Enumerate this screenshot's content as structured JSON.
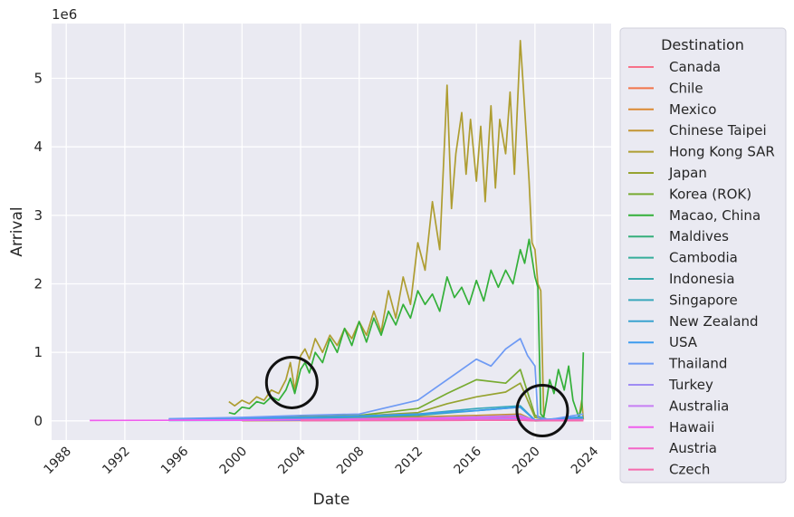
{
  "chart_data": {
    "type": "line",
    "title": "",
    "xlabel": "Date",
    "ylabel": "Arrival",
    "y_scale_label": "1e6",
    "xlim": [
      1987.0,
      2025.2
    ],
    "ylim": [
      -0.28,
      5.8
    ],
    "x_ticks": [
      "1988",
      "1992",
      "1996",
      "2000",
      "2004",
      "2008",
      "2012",
      "2016",
      "2020",
      "2024"
    ],
    "x_tick_values": [
      1988,
      1992,
      1996,
      2000,
      2004,
      2008,
      2012,
      2016,
      2020,
      2024
    ],
    "y_ticks": [
      "0",
      "1",
      "2",
      "3",
      "4",
      "5"
    ],
    "y_tick_values": [
      0,
      1,
      2,
      3,
      4,
      5
    ],
    "grid": true,
    "background": "#eaeaf2",
    "legend": {
      "title": "Destination",
      "placement": "outside-right"
    },
    "series": [
      {
        "name": "Canada",
        "color": "#f77189",
        "x": [
          1995,
          2000,
          2004,
          2008,
          2012,
          2016,
          2019,
          2020,
          2023.3
        ],
        "values": [
          0.01,
          0.02,
          0.02,
          0.03,
          0.04,
          0.05,
          0.06,
          0.01,
          0.03
        ]
      },
      {
        "name": "Chile",
        "color": "#f2754a",
        "x": [
          2000,
          2008,
          2016,
          2019,
          2020,
          2023.3
        ],
        "values": [
          0.005,
          0.008,
          0.01,
          0.012,
          0.002,
          0.005
        ]
      },
      {
        "name": "Mexico",
        "color": "#dc8932",
        "x": [
          2000,
          2008,
          2016,
          2019,
          2020,
          2023.3
        ],
        "values": [
          0.004,
          0.01,
          0.015,
          0.018,
          0.002,
          0.008
        ]
      },
      {
        "name": "Chinese Taipei",
        "color": "#c39532",
        "x": [
          1995,
          2000,
          2004,
          2008,
          2012,
          2016,
          2019,
          2020,
          2023.3
        ],
        "values": [
          0.02,
          0.03,
          0.04,
          0.05,
          0.06,
          0.08,
          0.1,
          0.0,
          0.02
        ]
      },
      {
        "name": "Hong Kong SAR",
        "color": "#ae9d31",
        "x": [
          1999.1,
          1999.5,
          2000,
          2000.5,
          2001,
          2001.5,
          2002,
          2002.5,
          2003,
          2003.3,
          2003.6,
          2004,
          2004.3,
          2004.6,
          2005,
          2005.5,
          2006,
          2006.5,
          2007,
          2007.5,
          2008,
          2008.5,
          2009,
          2009.5,
          2010,
          2010.5,
          2011,
          2011.5,
          2012,
          2012.5,
          2013,
          2013.5,
          2014,
          2014.3,
          2014.6,
          2015,
          2015.3,
          2015.6,
          2016,
          2016.3,
          2016.6,
          2017,
          2017.3,
          2017.6,
          2018,
          2018.3,
          2018.6,
          2019,
          2019.2,
          2019.4,
          2019.6,
          2019.8,
          2020,
          2020.2,
          2020.4,
          2020.6,
          2020.8,
          2021,
          2021.5,
          2022,
          2022.5,
          2023,
          2023.2,
          2023.3
        ],
        "values": [
          0.28,
          0.22,
          0.3,
          0.25,
          0.35,
          0.3,
          0.45,
          0.4,
          0.6,
          0.85,
          0.45,
          0.95,
          1.05,
          0.9,
          1.2,
          1.0,
          1.25,
          1.1,
          1.35,
          1.2,
          1.45,
          1.25,
          1.6,
          1.3,
          1.9,
          1.5,
          2.1,
          1.7,
          2.6,
          2.2,
          3.2,
          2.5,
          4.9,
          3.1,
          3.9,
          4.5,
          3.6,
          4.4,
          3.5,
          4.3,
          3.2,
          4.6,
          3.4,
          4.4,
          3.9,
          4.8,
          3.6,
          5.55,
          4.9,
          4.2,
          3.5,
          2.6,
          2.5,
          2.0,
          1.9,
          0.05,
          0.02,
          0.01,
          0.01,
          0.01,
          0.02,
          0.05,
          0.3,
          0.02
        ]
      },
      {
        "name": "Japan",
        "color": "#96a331",
        "x": [
          1995,
          2000,
          2004,
          2008,
          2012,
          2014,
          2016,
          2018,
          2019,
          2020,
          2021,
          2023.3
        ],
        "values": [
          0.01,
          0.03,
          0.05,
          0.07,
          0.12,
          0.25,
          0.35,
          0.42,
          0.55,
          0.05,
          0.01,
          0.04
        ]
      },
      {
        "name": "Korea (ROK)",
        "color": "#77ab31",
        "x": [
          1995,
          2000,
          2004,
          2008,
          2012,
          2014,
          2016,
          2018,
          2019,
          2020,
          2021,
          2023.3
        ],
        "values": [
          0.02,
          0.04,
          0.06,
          0.08,
          0.18,
          0.4,
          0.6,
          0.55,
          0.75,
          0.08,
          0.01,
          0.06
        ]
      },
      {
        "name": "Macao, China",
        "color": "#33b039",
        "x": [
          1999.1,
          1999.5,
          2000,
          2000.5,
          2001,
          2001.5,
          2002,
          2002.5,
          2003,
          2003.3,
          2003.6,
          2004,
          2004.3,
          2004.6,
          2005,
          2005.5,
          2006,
          2006.5,
          2007,
          2007.5,
          2008,
          2008.5,
          2009,
          2009.5,
          2010,
          2010.5,
          2011,
          2011.5,
          2012,
          2012.5,
          2013,
          2013.5,
          2014,
          2014.5,
          2015,
          2015.5,
          2016,
          2016.5,
          2017,
          2017.5,
          2018,
          2018.5,
          2019,
          2019.3,
          2019.6,
          2020,
          2020.2,
          2020.4,
          2020.6,
          2020.8,
          2021,
          2021.3,
          2021.6,
          2022,
          2022.3,
          2022.6,
          2023,
          2023.2,
          2023.3
        ],
        "values": [
          0.12,
          0.1,
          0.2,
          0.18,
          0.28,
          0.25,
          0.35,
          0.3,
          0.45,
          0.62,
          0.4,
          0.75,
          0.85,
          0.7,
          1.0,
          0.85,
          1.2,
          1.0,
          1.35,
          1.1,
          1.45,
          1.15,
          1.5,
          1.25,
          1.6,
          1.4,
          1.7,
          1.5,
          1.9,
          1.7,
          1.85,
          1.6,
          2.1,
          1.8,
          1.95,
          1.7,
          2.05,
          1.75,
          2.2,
          1.95,
          2.2,
          2.0,
          2.5,
          2.3,
          2.65,
          2.1,
          1.95,
          0.1,
          0.05,
          0.3,
          0.6,
          0.4,
          0.75,
          0.45,
          0.8,
          0.3,
          0.05,
          0.2,
          1.0
        ]
      },
      {
        "name": "Maldives",
        "color": "#35ae7b",
        "x": [
          2004,
          2012,
          2016,
          2019,
          2020,
          2023.3
        ],
        "values": [
          0.005,
          0.01,
          0.02,
          0.025,
          0.002,
          0.01
        ]
      },
      {
        "name": "Cambodia",
        "color": "#36ad9a",
        "x": [
          2004,
          2012,
          2016,
          2019,
          2020,
          2023.3
        ],
        "values": [
          0.01,
          0.03,
          0.05,
          0.08,
          0.01,
          0.02
        ]
      },
      {
        "name": "Indonesia",
        "color": "#38aaac",
        "x": [
          1995,
          2004,
          2012,
          2016,
          2019,
          2020,
          2023.3
        ],
        "values": [
          0.01,
          0.03,
          0.08,
          0.15,
          0.2,
          0.01,
          0.03
        ]
      },
      {
        "name": "Singapore",
        "color": "#39a7bc",
        "x": [
          1995,
          2004,
          2012,
          2016,
          2019,
          2020,
          2023.3
        ],
        "values": [
          0.02,
          0.04,
          0.1,
          0.18,
          0.22,
          0.01,
          0.05
        ]
      },
      {
        "name": "New Zealand",
        "color": "#3ba3d0",
        "x": [
          1995,
          2004,
          2012,
          2016,
          2019,
          2020,
          2023.3
        ],
        "values": [
          0.005,
          0.01,
          0.02,
          0.03,
          0.04,
          0.0,
          0.01
        ]
      },
      {
        "name": "USA",
        "color": "#3d9bee",
        "x": [
          1995,
          2000,
          2004,
          2008,
          2012,
          2016,
          2019,
          2020,
          2023.3
        ],
        "values": [
          0.02,
          0.04,
          0.05,
          0.07,
          0.1,
          0.15,
          0.2,
          0.01,
          0.06
        ]
      },
      {
        "name": "Thailand",
        "color": "#6e9af4",
        "x": [
          1995,
          2000,
          2004,
          2008,
          2012,
          2014,
          2015,
          2016,
          2017,
          2018,
          2019,
          2019.5,
          2020,
          2020.2,
          2021,
          2023.3
        ],
        "values": [
          0.03,
          0.05,
          0.08,
          0.1,
          0.3,
          0.6,
          0.75,
          0.9,
          0.8,
          1.05,
          1.2,
          0.95,
          0.8,
          0.05,
          0.02,
          0.1
        ]
      },
      {
        "name": "Turkey",
        "color": "#9f8cf4",
        "x": [
          2004,
          2012,
          2016,
          2019,
          2020,
          2023.3
        ],
        "values": [
          0.005,
          0.01,
          0.02,
          0.03,
          0.002,
          0.01
        ]
      },
      {
        "name": "Australia",
        "color": "#c67ef4",
        "x": [
          1995,
          2004,
          2012,
          2016,
          2019,
          2020,
          2023.3
        ],
        "values": [
          0.01,
          0.02,
          0.04,
          0.06,
          0.08,
          0.005,
          0.02
        ]
      },
      {
        "name": "Hawaii",
        "color": "#ef5eee",
        "x": [
          1989.6,
          1995,
          2000,
          2004,
          2008,
          2012,
          2016,
          2019,
          2020,
          2023.3
        ],
        "values": [
          0.005,
          0.008,
          0.01,
          0.015,
          0.02,
          0.03,
          0.04,
          0.05,
          0.005,
          0.01
        ]
      },
      {
        "name": "Austria",
        "color": "#f365c7",
        "x": [
          2004,
          2012,
          2016,
          2019,
          2020,
          2023.3
        ],
        "values": [
          0.005,
          0.008,
          0.01,
          0.012,
          0.002,
          0.005
        ]
      },
      {
        "name": "Czech",
        "color": "#f56bad",
        "x": [
          2004,
          2012,
          2016,
          2019,
          2020,
          2023.3
        ],
        "values": [
          0.004,
          0.006,
          0.008,
          0.01,
          0.001,
          0.004
        ]
      }
    ],
    "annotations": [
      {
        "type": "circle",
        "x": 2003.4,
        "y": 0.56
      },
      {
        "type": "circle",
        "x": 2020.5,
        "y": 0.15
      }
    ]
  }
}
